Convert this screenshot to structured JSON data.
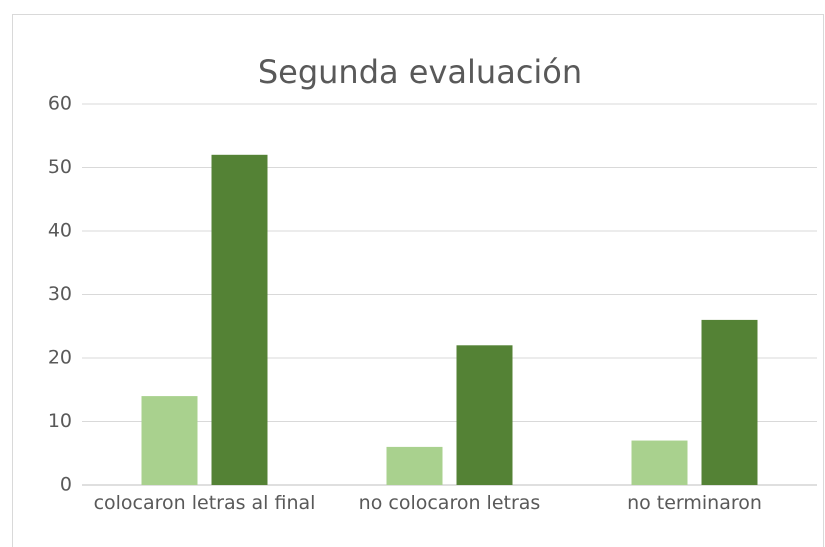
{
  "chart_data": {
    "type": "bar",
    "title": "Segunda evaluación",
    "categories": [
      "colocaron letras al final",
      "no colocaron letras",
      "no terminaron"
    ],
    "series": [
      {
        "color": "#a9d18e",
        "values": [
          14,
          6,
          7
        ]
      },
      {
        "color": "#548235",
        "values": [
          52,
          22,
          26
        ]
      }
    ],
    "ylim": [
      0,
      60
    ],
    "yticks": [
      0,
      10,
      20,
      30,
      40,
      50,
      60
    ],
    "grid": true
  }
}
